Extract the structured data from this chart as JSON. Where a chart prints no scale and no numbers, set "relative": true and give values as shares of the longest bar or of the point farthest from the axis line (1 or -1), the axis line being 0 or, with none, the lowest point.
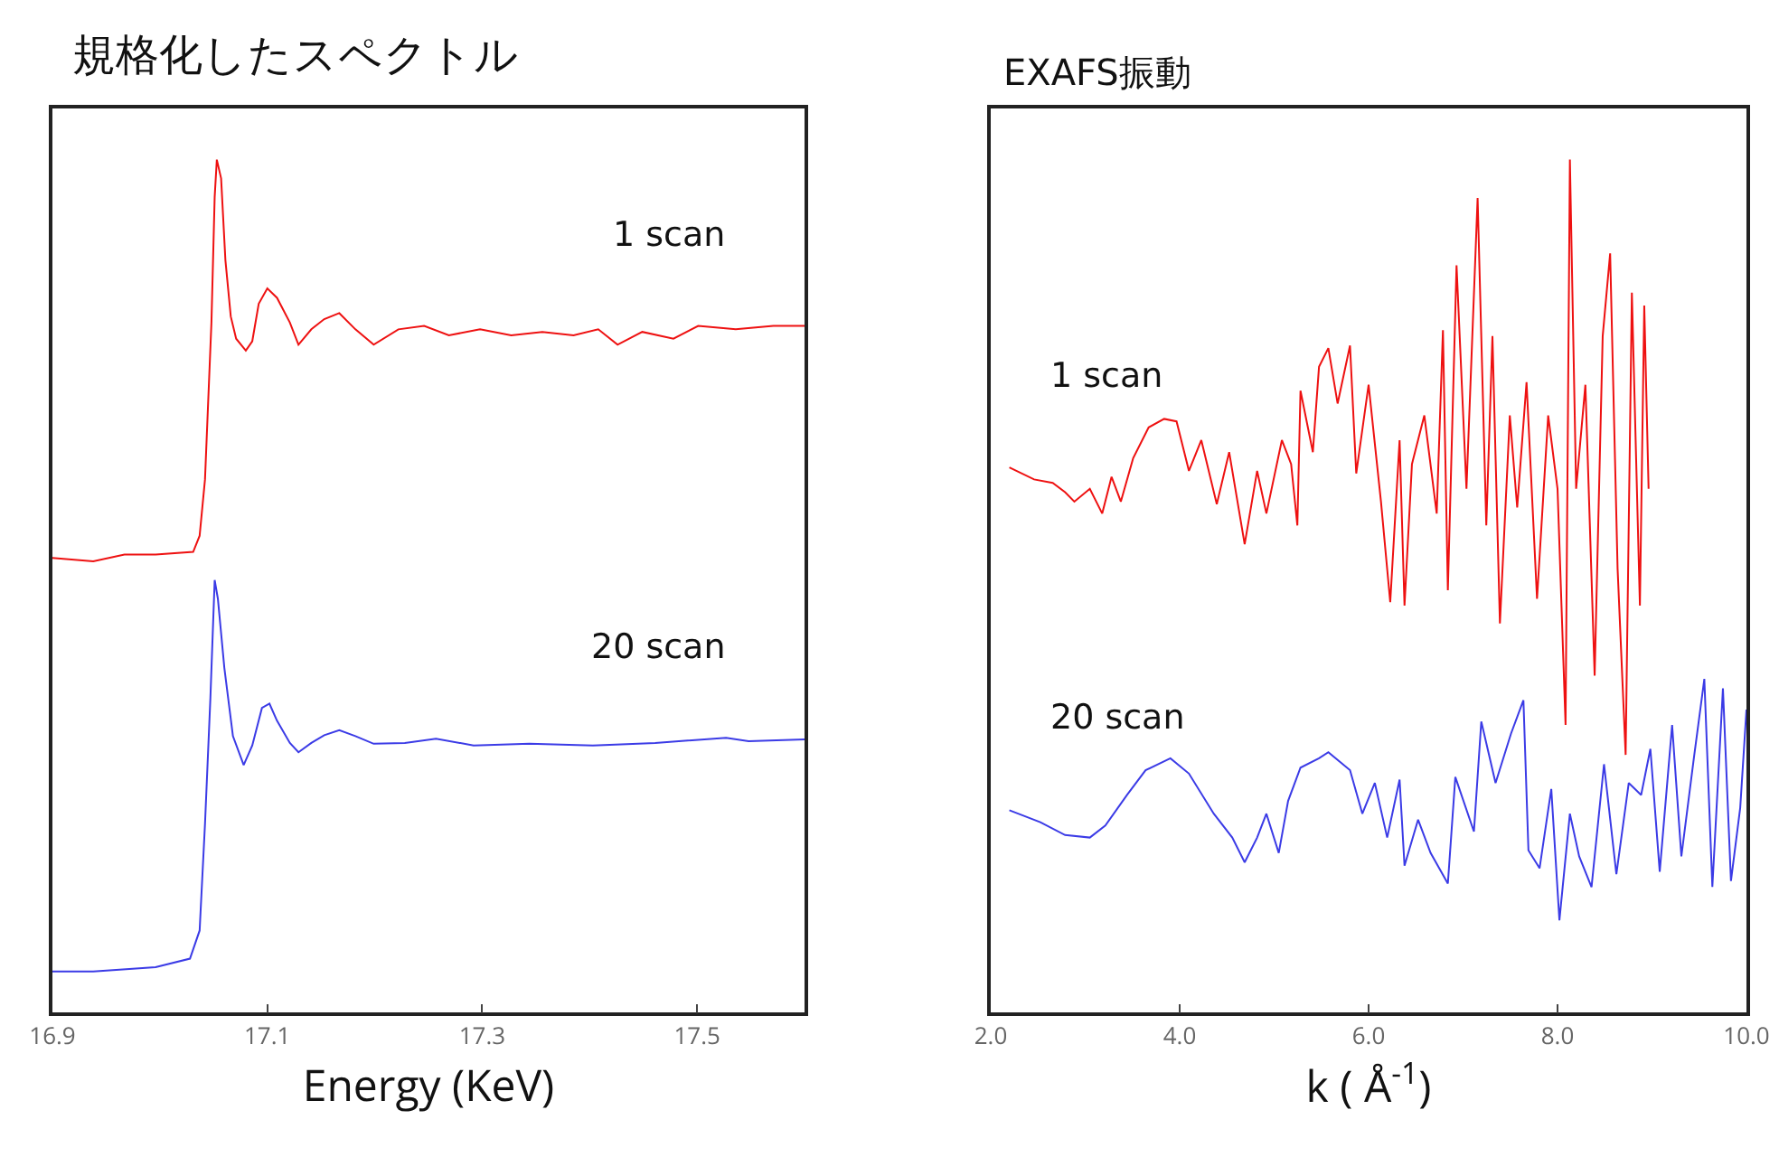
{
  "chart_data": [
    {
      "type": "line",
      "title": "規格化したスペクトル",
      "xlabel": "Energy (KeV)",
      "relative": true,
      "xlim": [
        16.9,
        17.6
      ],
      "xticks": [
        16.9,
        17.1,
        17.3,
        17.5
      ],
      "legend": false,
      "grid": false,
      "series": [
        {
          "name": "1 scan",
          "color": "#ee1111",
          "x": [
            16.9,
            16.938,
            16.967,
            16.996,
            17.031,
            17.037,
            17.042,
            17.048,
            17.051,
            17.053,
            17.057,
            17.061,
            17.066,
            17.071,
            17.08,
            17.086,
            17.092,
            17.1,
            17.109,
            17.121,
            17.129,
            17.141,
            17.153,
            17.167,
            17.182,
            17.199,
            17.222,
            17.246,
            17.269,
            17.298,
            17.327,
            17.356,
            17.385,
            17.408,
            17.426,
            17.449,
            17.478,
            17.501,
            17.536,
            17.571,
            17.6
          ],
          "values": [
            0.533,
            0.529,
            0.537,
            0.537,
            0.54,
            0.559,
            0.625,
            0.809,
            0.956,
            1.0,
            0.978,
            0.882,
            0.816,
            0.79,
            0.776,
            0.787,
            0.831,
            0.849,
            0.838,
            0.809,
            0.783,
            0.801,
            0.813,
            0.82,
            0.801,
            0.783,
            0.801,
            0.805,
            0.794,
            0.801,
            0.794,
            0.798,
            0.794,
            0.801,
            0.783,
            0.798,
            0.79,
            0.805,
            0.801,
            0.805,
            0.805
          ]
        },
        {
          "name": "20 scan",
          "color": "#3b3be6",
          "x": [
            16.9,
            16.938,
            16.996,
            17.028,
            17.037,
            17.042,
            17.047,
            17.051,
            17.054,
            17.06,
            17.068,
            17.078,
            17.086,
            17.095,
            17.102,
            17.109,
            17.121,
            17.129,
            17.141,
            17.153,
            17.167,
            17.182,
            17.199,
            17.228,
            17.257,
            17.292,
            17.344,
            17.403,
            17.461,
            17.527,
            17.548,
            17.6
          ],
          "values": [
            0.048,
            0.048,
            0.053,
            0.063,
            0.096,
            0.221,
            0.368,
            0.507,
            0.485,
            0.404,
            0.324,
            0.29,
            0.313,
            0.357,
            0.362,
            0.342,
            0.316,
            0.305,
            0.316,
            0.325,
            0.331,
            0.324,
            0.315,
            0.316,
            0.321,
            0.313,
            0.315,
            0.313,
            0.316,
            0.322,
            0.318,
            0.32
          ]
        }
      ]
    },
    {
      "type": "line",
      "title": "EXAFS振動",
      "xlabel": "k ( Å$^{-1}$)",
      "relative": true,
      "xlim": [
        2.0,
        10.0
      ],
      "xticks": [
        {
          "value": 2,
          "label": "2.0"
        },
        {
          "value": 4,
          "label": "4.0"
        },
        {
          "value": 6,
          "label": "6.0"
        },
        {
          "value": 8,
          "label": "8.0"
        },
        {
          "value": 10,
          "label": "10.0"
        }
      ],
      "legend": false,
      "grid": false,
      "series": [
        {
          "name": "1 scan",
          "color": "#ee1111",
          "x": [
            2.197,
            2.459,
            2.656,
            2.787,
            2.885,
            3.049,
            3.18,
            3.279,
            3.377,
            3.508,
            3.672,
            3.836,
            3.967,
            4.098,
            4.229,
            4.393,
            4.524,
            4.688,
            4.82,
            4.918,
            5.082,
            5.18,
            5.246,
            5.279,
            5.41,
            5.475,
            5.574,
            5.672,
            5.803,
            5.869,
            6.0,
            6.131,
            6.229,
            6.328,
            6.38,
            6.459,
            6.59,
            6.721,
            6.787,
            6.839,
            6.931,
            7.036,
            7.154,
            7.246,
            7.311,
            7.39,
            7.495,
            7.573,
            7.672,
            7.783,
            7.901,
            8.0,
            8.085,
            8.131,
            8.197,
            8.295,
            8.393,
            8.478,
            8.557,
            8.636,
            8.721,
            8.787,
            8.872,
            8.918,
            8.964
          ],
          "values": [
            0.639,
            0.625,
            0.621,
            0.61,
            0.599,
            0.614,
            0.585,
            0.628,
            0.599,
            0.65,
            0.686,
            0.696,
            0.693,
            0.635,
            0.671,
            0.596,
            0.657,
            0.549,
            0.635,
            0.585,
            0.671,
            0.643,
            0.571,
            0.729,
            0.657,
            0.757,
            0.779,
            0.714,
            0.782,
            0.632,
            0.736,
            0.599,
            0.481,
            0.671,
            0.477,
            0.643,
            0.7,
            0.585,
            0.8,
            0.495,
            0.876,
            0.614,
            0.955,
            0.571,
            0.793,
            0.456,
            0.7,
            0.592,
            0.739,
            0.485,
            0.7,
            0.614,
            0.337,
            1.0,
            0.614,
            0.736,
            0.395,
            0.793,
            0.89,
            0.52,
            0.302,
            0.844,
            0.477,
            0.829,
            0.614
          ]
        },
        {
          "name": "20 scan",
          "color": "#3b3be6",
          "x": [
            2.197,
            2.525,
            2.787,
            3.049,
            3.213,
            3.443,
            3.639,
            3.902,
            4.098,
            4.361,
            4.557,
            4.688,
            4.82,
            4.918,
            5.049,
            5.148,
            5.279,
            5.475,
            5.574,
            5.803,
            5.934,
            6.066,
            6.197,
            6.328,
            6.38,
            6.524,
            6.656,
            6.839,
            6.918,
            7.115,
            7.193,
            7.344,
            7.508,
            7.639,
            7.692,
            7.81,
            7.934,
            8.02,
            8.131,
            8.229,
            8.36,
            8.492,
            8.623,
            8.754,
            8.885,
            8.983,
            9.082,
            9.213,
            9.311,
            9.443,
            9.554,
            9.639,
            9.751,
            9.836,
            9.934,
            10.0
          ],
          "values": [
            0.237,
            0.223,
            0.208,
            0.205,
            0.219,
            0.255,
            0.284,
            0.298,
            0.28,
            0.233,
            0.205,
            0.176,
            0.205,
            0.233,
            0.187,
            0.248,
            0.287,
            0.298,
            0.305,
            0.284,
            0.233,
            0.269,
            0.205,
            0.273,
            0.172,
            0.226,
            0.187,
            0.151,
            0.276,
            0.212,
            0.341,
            0.269,
            0.327,
            0.366,
            0.19,
            0.169,
            0.262,
            0.108,
            0.233,
            0.183,
            0.147,
            0.291,
            0.162,
            0.269,
            0.255,
            0.309,
            0.165,
            0.337,
            0.183,
            0.298,
            0.391,
            0.147,
            0.38,
            0.154,
            0.24,
            0.355
          ]
        }
      ]
    }
  ]
}
